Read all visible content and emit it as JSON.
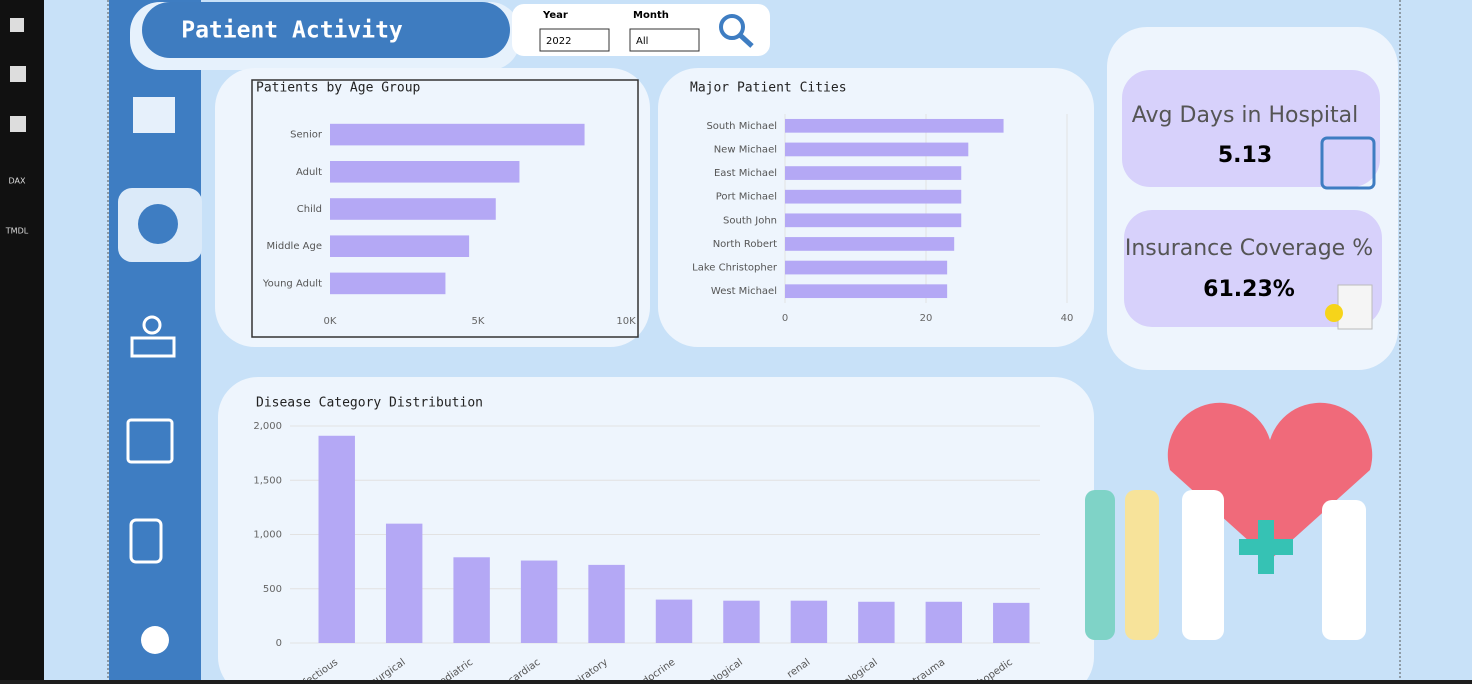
{
  "header": {
    "title": "Patient Activity"
  },
  "toolbar": {
    "items": [
      "DAX",
      "TMDL"
    ]
  },
  "slicers": [
    {
      "label": "Year",
      "value": "2022"
    },
    {
      "label": "Month",
      "value": "All"
    }
  ],
  "kpis": [
    {
      "label": "Avg Days in Hospital",
      "value": 5.13
    },
    {
      "label": "Insurance Coverage %",
      "value": 61.23,
      "value_label": "61.23%"
    }
  ],
  "chart_data": [
    {
      "type": "hbar",
      "title": "Patients by Age Group",
      "categories": [
        "Senior",
        "Adult",
        "Child",
        "Middle Age",
        "Young Adult"
      ],
      "values": [
        8600,
        6400,
        5600,
        4700,
        3900
      ],
      "color": "#b4a8f5",
      "xlim": [
        0,
        10000
      ],
      "xticks": [
        {
          "value": 0,
          "label": "0K"
        },
        {
          "value": 5000,
          "label": "5K"
        },
        {
          "value": 10000,
          "label": "10K"
        }
      ]
    },
    {
      "type": "hbar",
      "title": "Major Patient Cities",
      "categories": [
        "South Michael",
        "New Michael",
        "East Michael",
        "Port Michael",
        "South John",
        "North Robert",
        "Lake Christopher",
        "West Michael"
      ],
      "values": [
        31,
        26,
        25,
        25,
        25,
        24,
        23,
        23
      ],
      "color": "#b4a8f5",
      "xlim": [
        0,
        40
      ],
      "xticks": [
        0,
        20,
        40
      ],
      "grid": true
    },
    {
      "type": "bar",
      "title": "Disease Category Distribution",
      "categories": [
        "infectious",
        "surgical",
        "pediatric",
        "cardiac",
        "respiratory",
        "endocrine",
        "neurological",
        "renal",
        "dermatological",
        "trauma",
        "orthopedic"
      ],
      "values": [
        1910,
        1100,
        790,
        760,
        720,
        400,
        390,
        390,
        380,
        380,
        370
      ],
      "color": "#b4a8f5",
      "ylim": [
        0,
        2000
      ],
      "yticks": [
        0,
        500,
        {
          "value": 1000,
          "label": "1,000"
        },
        {
          "value": 1500,
          "label": "1,500"
        },
        {
          "value": 2000,
          "label": "2,000"
        }
      ],
      "grid": true
    }
  ]
}
